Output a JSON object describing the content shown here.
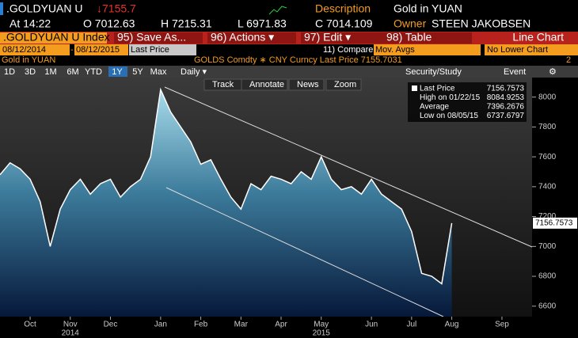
{
  "header": {
    "ticker": ".GOLDYUAN U",
    "last": "↓7155.7",
    "description_label": "Description",
    "description": "Gold in YUAN",
    "at": "At 14:22",
    "open": "O 7012.63",
    "high": "H 7215.31",
    "low": "L 6971.83",
    "close": "C 7014.109",
    "owner_label": "Owner",
    "owner": "STEEN JAKOBSEN"
  },
  "toolbar": {
    "security": ".GOLDYUAN U Index",
    "menu": [
      "95) Save As...",
      "96) Actions ▾",
      "97) Edit ▾",
      "98) Table"
    ],
    "view": "Line Chart"
  },
  "range": {
    "start": "08/12/2014",
    "dash": "-",
    "end": "08/12/2015",
    "field": "Last Price",
    "compare": "11) Compare",
    "compare_value": "Mov. Avgs",
    "lower": "No Lower Chart"
  },
  "info": {
    "left": "Gold in YUAN",
    "center": "GOLDS Comdty ∗ CNY Curncy   Last Price 7155.7031",
    "right": "2"
  },
  "periods": [
    "1D",
    "3D",
    "1M",
    "6M",
    "YTD",
    "1Y",
    "5Y",
    "Max"
  ],
  "frequency": "Daily ▾",
  "tools": [
    "Security/Study",
    "Event"
  ],
  "chart_tools": [
    "Track",
    "Annotate",
    "News",
    "Zoom"
  ],
  "chart_data": {
    "type": "line",
    "color": "#ffffff",
    "categories": [
      null,
      null,
      null,
      "Oct",
      null,
      null,
      null,
      "Nov",
      null,
      null,
      null,
      "Dec",
      null,
      null,
      null,
      null,
      "Jan",
      null,
      null,
      null,
      "Feb",
      null,
      null,
      null,
      "Mar",
      null,
      null,
      null,
      "Apr",
      null,
      null,
      null,
      "May",
      null,
      null,
      null,
      null,
      "Jun",
      null,
      null,
      null,
      "Jul",
      null,
      null,
      null,
      "Aug",
      null,
      null,
      null,
      null,
      "Sep",
      null,
      null,
      null
    ],
    "values": [
      7480,
      7560,
      7520,
      7450,
      7300,
      7000,
      7250,
      7380,
      7450,
      7350,
      7420,
      7450,
      7330,
      7400,
      7450,
      7600,
      8050,
      7900,
      7800,
      7700,
      7550,
      7580,
      7450,
      7330,
      7250,
      7420,
      7380,
      7470,
      7450,
      7420,
      7500,
      7450,
      7600,
      7450,
      7380,
      7400,
      7350,
      7450,
      7350,
      7300,
      7250,
      7100,
      6820,
      6800,
      6750,
      7156,
      null,
      null,
      null,
      null,
      null,
      null,
      null,
      null
    ],
    "years": [
      "2014",
      "2015"
    ],
    "ylim": [
      6530,
      8120
    ],
    "yticks": [
      6600,
      6800,
      7000,
      7200,
      7400,
      7600,
      7800,
      8000
    ],
    "last_label": "7156.7573",
    "stats": [
      {
        "label": "Last Price",
        "value": "7156.7573"
      },
      {
        "label": "High on 01/22/15",
        "value": "8084.9253"
      },
      {
        "label": "Average",
        "value": "7396.2676"
      },
      {
        "label": "Low on 08/05/15",
        "value": "6737.6797"
      }
    ]
  }
}
